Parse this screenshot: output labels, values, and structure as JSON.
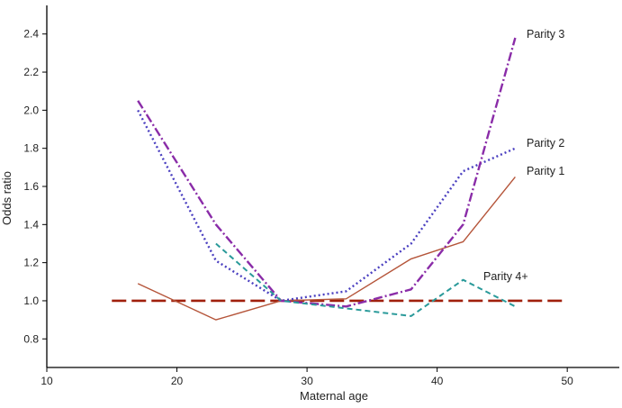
{
  "chart_data": {
    "type": "line",
    "title": "",
    "xlabel": "Maternal age",
    "ylabel": "Odds ratio",
    "xlim": [
      10,
      54
    ],
    "ylim": [
      0.65,
      2.55
    ],
    "xticks": [
      10,
      20,
      30,
      40,
      50
    ],
    "yticks": [
      0.8,
      1.0,
      1.2,
      1.4,
      1.6,
      1.8,
      2.0,
      2.2,
      2.4
    ],
    "grid": false,
    "series": [
      {
        "name": "Parity 1",
        "color": "#b5553a",
        "style": "solid",
        "x": [
          17,
          23,
          28,
          33,
          38,
          42,
          46
        ],
        "y": [
          1.09,
          0.9,
          1.0,
          1.01,
          1.22,
          1.31,
          1.65
        ]
      },
      {
        "name": "Parity 2",
        "color": "#4a3fc0",
        "style": "dotted",
        "x": [
          17,
          23,
          28,
          33,
          38,
          42,
          46
        ],
        "y": [
          2.0,
          1.21,
          1.0,
          1.05,
          1.3,
          1.68,
          1.8
        ]
      },
      {
        "name": "Parity 3",
        "color": "#8a2ca8",
        "style": "dashdot",
        "x": [
          17,
          23,
          28,
          33,
          38,
          42,
          46
        ],
        "y": [
          2.05,
          1.4,
          1.0,
          0.97,
          1.06,
          1.4,
          2.38
        ]
      },
      {
        "name": "Parity 4+",
        "color": "#2a9a9a",
        "style": "dashed",
        "x": [
          23,
          28,
          33,
          38,
          42,
          46
        ],
        "y": [
          1.3,
          1.0,
          0.96,
          0.92,
          1.11,
          0.97
        ]
      }
    ],
    "reference_line": {
      "y": 1.0,
      "x_start": 15,
      "x_end": 50,
      "color": "#a0200c",
      "style": "long-dashed"
    }
  }
}
